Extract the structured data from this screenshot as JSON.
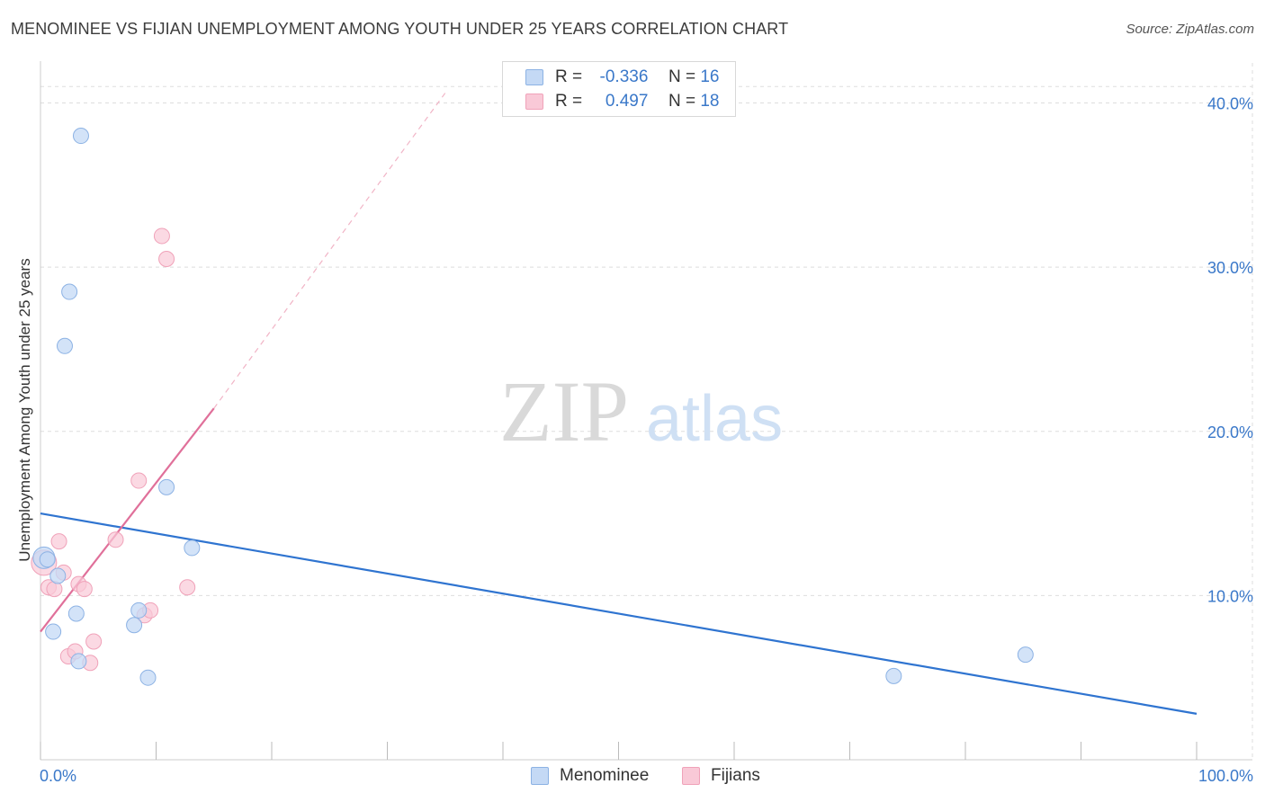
{
  "title": "MENOMINEE VS FIJIAN UNEMPLOYMENT AMONG YOUTH UNDER 25 YEARS CORRELATION CHART",
  "source": "Source: ZipAtlas.com",
  "watermark": {
    "zip": "ZIP",
    "atlas": "atlas"
  },
  "legend": {
    "menominee": {
      "r_label": "R =",
      "r_value": "-0.336",
      "n_label": "N =",
      "n_value": "16"
    },
    "fijians": {
      "r_label": "R =",
      "r_value": "0.497",
      "n_label": "N =",
      "n_value": "18"
    }
  },
  "bottom_legend": {
    "menominee": "Menominee",
    "fijians": "Fijians"
  },
  "colors": {
    "menominee_fill": "#c4d9f5",
    "menominee_stroke": "#8cb2e4",
    "menominee_line": "#2f74d0",
    "fijians_fill": "#f9c9d7",
    "fijians_stroke": "#f0a2b9",
    "fijians_line": "#e0709a",
    "tick_label": "#3a78c9",
    "grid": "#dddddd"
  },
  "chart_data": {
    "type": "scatter",
    "title": "MENOMINEE VS FIJIAN UNEMPLOYMENT AMONG YOUTH UNDER 25 YEARS CORRELATION CHART",
    "xlabel": "",
    "ylabel": "Unemployment Among Youth under 25 years",
    "xlim": [
      0,
      100
    ],
    "ylim": [
      0,
      42
    ],
    "x_tick_labels": [
      "0.0%",
      "100.0%"
    ],
    "y_ticks": [
      10,
      20,
      30,
      40
    ],
    "y_tick_labels": [
      "10.0%",
      "20.0%",
      "30.0%",
      "40.0%"
    ],
    "series": [
      {
        "name": "Menominee",
        "points": [
          [
            0.3,
            12.3
          ],
          [
            0.6,
            12.2
          ],
          [
            1.1,
            7.8
          ],
          [
            1.5,
            11.2
          ],
          [
            2.1,
            25.2
          ],
          [
            2.5,
            28.5
          ],
          [
            3.1,
            8.9
          ],
          [
            3.3,
            6.0
          ],
          [
            3.5,
            38.0
          ],
          [
            8.1,
            8.2
          ],
          [
            8.5,
            9.1
          ],
          [
            9.3,
            5.0
          ],
          [
            10.9,
            16.6
          ],
          [
            13.1,
            12.9
          ],
          [
            73.8,
            5.1
          ],
          [
            85.2,
            6.4
          ]
        ],
        "trend": {
          "x": [
            0,
            100
          ],
          "y": [
            15.0,
            2.8
          ],
          "style": "solid"
        }
      },
      {
        "name": "Fijians",
        "points": [
          [
            0.3,
            12.0
          ],
          [
            0.7,
            10.5
          ],
          [
            1.2,
            10.4
          ],
          [
            1.6,
            13.3
          ],
          [
            2.0,
            11.4
          ],
          [
            2.4,
            6.3
          ],
          [
            3.0,
            6.6
          ],
          [
            3.3,
            10.7
          ],
          [
            3.8,
            10.4
          ],
          [
            4.3,
            5.9
          ],
          [
            4.6,
            7.2
          ],
          [
            6.5,
            13.4
          ],
          [
            8.5,
            17.0
          ],
          [
            9.0,
            8.8
          ],
          [
            9.5,
            9.1
          ],
          [
            10.5,
            31.9
          ],
          [
            10.9,
            30.5
          ],
          [
            12.7,
            10.5
          ]
        ],
        "trend": {
          "x": [
            0,
            15
          ],
          "y": [
            7.8,
            21.4
          ],
          "style": "solid"
        },
        "trend_extension": {
          "x": [
            15,
            35
          ],
          "y": [
            21.4,
            40.6
          ],
          "style": "dashed"
        }
      }
    ],
    "grid": true,
    "legend_position": "top-center"
  }
}
